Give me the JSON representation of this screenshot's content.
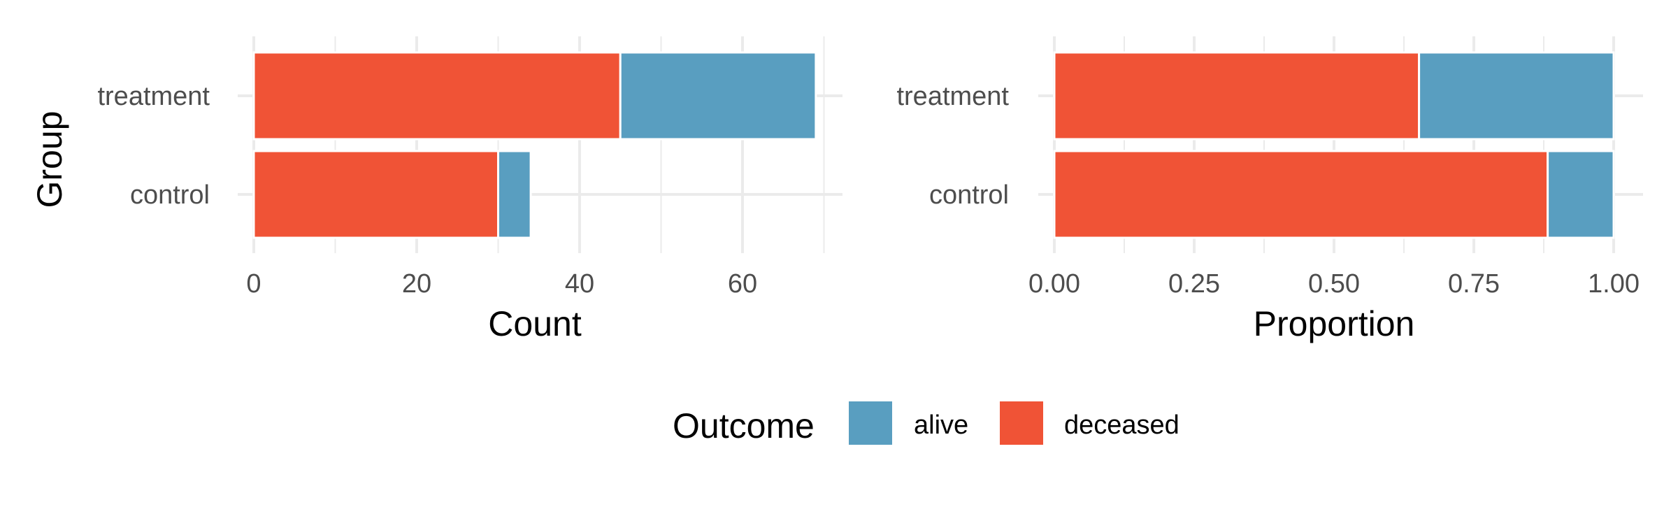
{
  "colors": {
    "alive": "#599ec0",
    "deceased": "#f05336",
    "grid": "#ebebeb",
    "tick_text": "#4d4d4d"
  },
  "y_axis_title": "Group",
  "legend": {
    "title": "Outcome",
    "placement": "bottom",
    "items": [
      {
        "key": "alive",
        "label": "alive"
      },
      {
        "key": "deceased",
        "label": "deceased"
      }
    ]
  },
  "chart_data": [
    {
      "type": "bar",
      "orientation": "horizontal",
      "stacked": true,
      "categories": [
        "treatment",
        "control"
      ],
      "series": [
        {
          "name": "deceased",
          "values": [
            45,
            30
          ]
        },
        {
          "name": "alive",
          "values": [
            24,
            4
          ]
        }
      ],
      "xlabel": "Count",
      "ylabel": "Group",
      "xlim": [
        0,
        72
      ],
      "xticks": [
        0,
        20,
        40,
        60
      ],
      "xtick_labels": [
        "0",
        "20",
        "40",
        "60"
      ],
      "grid": true
    },
    {
      "type": "bar",
      "orientation": "horizontal",
      "stacked": true,
      "categories": [
        "treatment",
        "control"
      ],
      "series": [
        {
          "name": "deceased",
          "values": [
            0.652,
            0.882
          ]
        },
        {
          "name": "alive",
          "values": [
            0.348,
            0.118
          ]
        }
      ],
      "xlabel": "Proportion",
      "ylabel": "Group",
      "xlim": [
        0,
        1.05
      ],
      "xticks": [
        0,
        0.25,
        0.5,
        0.75,
        1.0
      ],
      "xtick_labels": [
        "0.00",
        "0.25",
        "0.50",
        "0.75",
        "1.00"
      ],
      "grid": true
    }
  ]
}
